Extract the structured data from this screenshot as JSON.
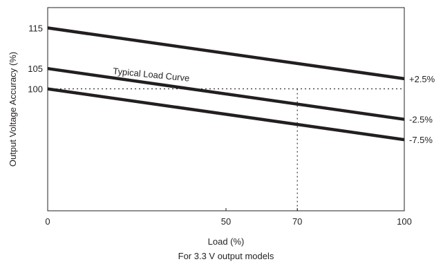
{
  "chart_data": {
    "type": "line",
    "xlabel": "Load (%)",
    "ylabel": "Output Voltage Accuracy (%)",
    "caption": "For 3.3 V output models",
    "xlim": [
      0,
      100
    ],
    "ylim": [
      70,
      120
    ],
    "x_ticks": [
      {
        "value": 0,
        "label": "0"
      },
      {
        "value": 50,
        "label": "50"
      },
      {
        "value": 70,
        "label": "70"
      },
      {
        "value": 100,
        "label": "100"
      }
    ],
    "y_ticks": [
      {
        "value": 100,
        "label": "100"
      },
      {
        "value": 105,
        "label": "105"
      },
      {
        "value": 115,
        "label": "115"
      }
    ],
    "series": [
      {
        "name": "+2.5%",
        "x": [
          0,
          100
        ],
        "y": [
          115,
          102.5
        ]
      },
      {
        "name": "-2.5%",
        "x": [
          0,
          100
        ],
        "y": [
          105,
          92.5
        ]
      },
      {
        "name": "-7.5%",
        "x": [
          0,
          100
        ],
        "y": [
          100,
          87.5
        ]
      }
    ],
    "reference_lines": {
      "horizontal_y": 100,
      "vertical_x": 70,
      "style": "dotted"
    },
    "annotation": {
      "text": "Typical Load Curve",
      "x": 20,
      "y": 105
    },
    "grid": false,
    "line_color": "#231f20"
  }
}
